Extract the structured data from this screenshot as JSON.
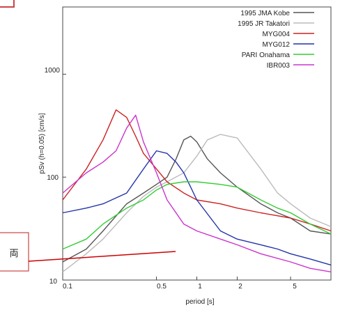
{
  "chart_data": {
    "type": "line",
    "xlabel": "period [s]",
    "ylabel": "pSv (h=0.05) [cm/s]",
    "x_scale": "log",
    "y_scale": "log",
    "xlim": [
      0.1,
      10
    ],
    "ylim": [
      10,
      4500
    ],
    "x_ticks": [
      {
        "value": 0.1,
        "label": "0.1"
      },
      {
        "value": 0.5,
        "label": "0.5"
      },
      {
        "value": 1,
        "label": "1"
      },
      {
        "value": 2,
        "label": "2"
      },
      {
        "value": 5,
        "label": "5"
      }
    ],
    "y_ticks": [
      {
        "value": 10,
        "label": "10"
      },
      {
        "value": 100,
        "label": "100"
      },
      {
        "value": 1000,
        "label": "1000"
      }
    ],
    "grid": false,
    "legend_position": "top-right",
    "series": [
      {
        "name": "1995 JMA Kobe",
        "color": "#555555",
        "x": [
          0.1,
          0.15,
          0.2,
          0.3,
          0.4,
          0.5,
          0.6,
          0.7,
          0.8,
          0.9,
          1.0,
          1.2,
          1.5,
          2,
          3,
          4,
          5,
          7,
          10
        ],
        "y": [
          15,
          20,
          30,
          55,
          70,
          85,
          100,
          150,
          230,
          250,
          220,
          150,
          110,
          80,
          55,
          45,
          40,
          30,
          28
        ]
      },
      {
        "name": "1995 JR Takatori",
        "color": "#bbbbbb",
        "x": [
          0.1,
          0.15,
          0.2,
          0.3,
          0.4,
          0.5,
          0.6,
          0.8,
          1.0,
          1.2,
          1.5,
          2,
          3,
          4,
          5,
          7,
          10
        ],
        "y": [
          12,
          18,
          25,
          45,
          65,
          80,
          90,
          110,
          160,
          230,
          260,
          240,
          120,
          70,
          55,
          40,
          33
        ]
      },
      {
        "name": "MYG004",
        "color": "#cc2222",
        "x": [
          0.1,
          0.15,
          0.2,
          0.25,
          0.3,
          0.35,
          0.4,
          0.5,
          0.6,
          0.8,
          1.0,
          1.5,
          2,
          3,
          5,
          7,
          10
        ],
        "y": [
          60,
          120,
          230,
          450,
          380,
          250,
          170,
          120,
          90,
          70,
          60,
          55,
          50,
          45,
          40,
          35,
          30
        ]
      },
      {
        "name": "MYG012",
        "color": "#2233aa",
        "x": [
          0.1,
          0.15,
          0.2,
          0.3,
          0.4,
          0.5,
          0.6,
          0.7,
          0.8,
          1.0,
          1.5,
          2,
          3,
          4,
          5,
          7,
          10
        ],
        "y": [
          45,
          50,
          55,
          70,
          120,
          180,
          170,
          140,
          110,
          60,
          30,
          25,
          22,
          20,
          18,
          16,
          14
        ]
      },
      {
        "name": "PARI Onahama",
        "color": "#33cc33",
        "x": [
          0.1,
          0.15,
          0.2,
          0.3,
          0.4,
          0.5,
          0.6,
          0.8,
          1.0,
          1.5,
          2,
          3,
          4,
          5,
          7,
          10
        ],
        "y": [
          20,
          25,
          35,
          50,
          60,
          75,
          85,
          90,
          90,
          85,
          80,
          60,
          50,
          45,
          35,
          28
        ]
      },
      {
        "name": "IBR003",
        "color": "#cc33cc",
        "x": [
          0.1,
          0.15,
          0.2,
          0.25,
          0.3,
          0.35,
          0.4,
          0.5,
          0.6,
          0.8,
          1.0,
          1.5,
          2,
          3,
          5,
          7,
          10
        ],
        "y": [
          70,
          110,
          140,
          180,
          300,
          400,
          220,
          110,
          60,
          35,
          30,
          25,
          22,
          18,
          15,
          13,
          12
        ]
      }
    ]
  },
  "callout": {
    "label": "両",
    "line_color": "#cc0000",
    "box_color": "#cc4444"
  }
}
